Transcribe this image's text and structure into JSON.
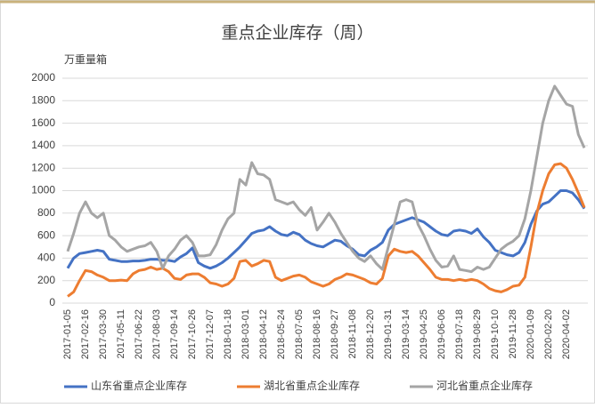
{
  "chart_data": {
    "type": "line",
    "title": "重点企业库存（周）",
    "y_label": "万重量箱",
    "categories": [
      "2017-01-05",
      null,
      null,
      "2017-02-16",
      null,
      null,
      "2017-03-30",
      null,
      null,
      "2017-05-11",
      null,
      null,
      "2017-06-22",
      null,
      null,
      "2017-08-03",
      null,
      null,
      "2017-09-14",
      null,
      null,
      "2017-10-26",
      null,
      null,
      "2017-12-07",
      null,
      null,
      "2018-01-18",
      null,
      null,
      "2018-03-01",
      null,
      null,
      "2018-04-12",
      null,
      null,
      "2018-05-24",
      null,
      null,
      "2018-07-05",
      null,
      null,
      "2018-08-16",
      null,
      null,
      "2018-09-27",
      null,
      null,
      "2018-11-08",
      null,
      null,
      "2018-12-20",
      null,
      null,
      "2019-01-31",
      null,
      null,
      "2019-03-14",
      null,
      null,
      "2019-04-25",
      null,
      null,
      "2019-06-06",
      null,
      null,
      "2019-07-18",
      null,
      null,
      "2019-08-29",
      null,
      null,
      "2019-10-10",
      null,
      null,
      "2019-11-28",
      null,
      null,
      "2020-01-09",
      null,
      null,
      "2020-02-20",
      null,
      null,
      "2020-04-02",
      null,
      null,
      null
    ],
    "series": [
      {
        "name": "山东省重点企业库存",
        "color": "#4472c4",
        "values": [
          310,
          400,
          440,
          450,
          460,
          470,
          460,
          390,
          380,
          370,
          370,
          375,
          375,
          380,
          390,
          390,
          380,
          380,
          370,
          410,
          440,
          490,
          360,
          330,
          310,
          330,
          360,
          400,
          450,
          500,
          560,
          620,
          640,
          650,
          680,
          640,
          610,
          600,
          630,
          610,
          560,
          530,
          510,
          500,
          530,
          560,
          550,
          510,
          480,
          430,
          420,
          470,
          500,
          540,
          650,
          700,
          720,
          740,
          760,
          740,
          720,
          680,
          640,
          610,
          600,
          640,
          650,
          640,
          620,
          660,
          590,
          540,
          470,
          450,
          430,
          420,
          450,
          540,
          700,
          820,
          880,
          900,
          950,
          1000,
          1000,
          980,
          920,
          840
        ]
      },
      {
        "name": "湖北省重点企业库存",
        "color": "#ed7d31",
        "values": [
          60,
          100,
          200,
          290,
          280,
          250,
          230,
          200,
          200,
          205,
          200,
          260,
          290,
          300,
          320,
          300,
          310,
          280,
          220,
          210,
          250,
          260,
          260,
          230,
          180,
          170,
          150,
          170,
          220,
          370,
          380,
          330,
          350,
          380,
          370,
          230,
          200,
          220,
          240,
          250,
          230,
          190,
          170,
          150,
          170,
          210,
          230,
          260,
          250,
          230,
          210,
          180,
          170,
          220,
          420,
          480,
          460,
          450,
          460,
          420,
          360,
          300,
          230,
          210,
          210,
          200,
          210,
          200,
          210,
          200,
          170,
          130,
          110,
          100,
          120,
          150,
          160,
          230,
          500,
          800,
          1000,
          1150,
          1230,
          1240,
          1200,
          1100,
          980,
          850
        ]
      },
      {
        "name": "河北省重点企业库存",
        "color": "#a5a5a5",
        "values": [
          460,
          620,
          800,
          900,
          800,
          760,
          800,
          600,
          560,
          500,
          460,
          480,
          500,
          510,
          540,
          460,
          310,
          420,
          480,
          560,
          600,
          540,
          420,
          420,
          430,
          520,
          650,
          750,
          800,
          1100,
          1050,
          1250,
          1150,
          1140,
          1100,
          920,
          900,
          880,
          900,
          830,
          780,
          850,
          650,
          720,
          800,
          720,
          620,
          540,
          460,
          400,
          370,
          420,
          350,
          300,
          500,
          700,
          900,
          920,
          900,
          700,
          600,
          480,
          380,
          320,
          330,
          420,
          300,
          290,
          280,
          320,
          300,
          320,
          400,
          480,
          520,
          550,
          600,
          750,
          1000,
          1300,
          1600,
          1800,
          1930,
          1850,
          1770,
          1750,
          1500,
          1380
        ]
      }
    ],
    "ylim": [
      0,
      2000
    ],
    "yticks": [
      0,
      200,
      400,
      600,
      800,
      1000,
      1200,
      1400,
      1600,
      1800,
      2000
    ],
    "grid": true,
    "legend": "bottom"
  }
}
